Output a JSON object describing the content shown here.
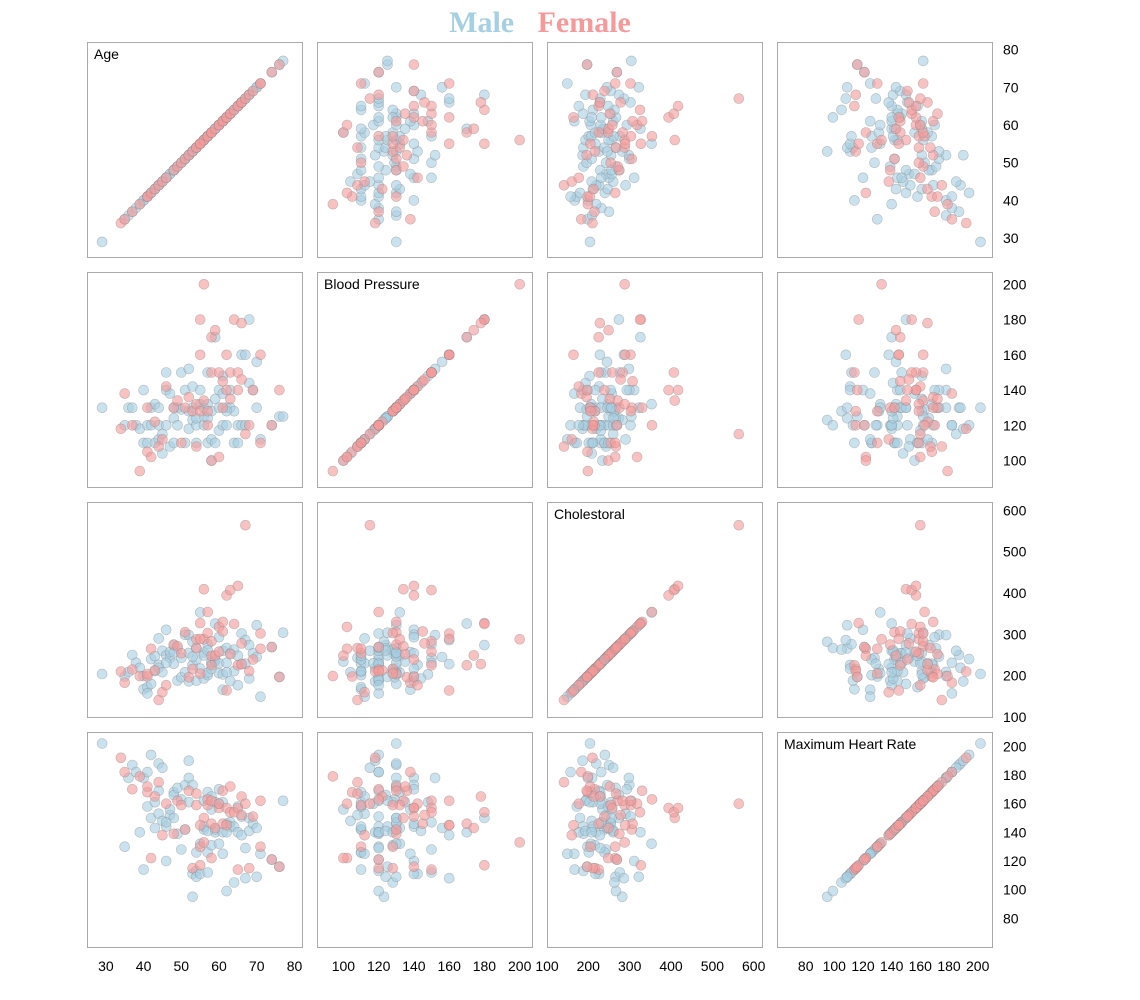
{
  "legend": {
    "male_label": "Male",
    "female_label": "Female"
  },
  "colors": {
    "male": "#a6cfe2",
    "female": "#f59a9a",
    "point_stroke": "#888888",
    "frame": "#aaaaaa"
  },
  "chart_data": {
    "type": "scatter",
    "subtype": "scatterplot-matrix",
    "grid": false,
    "legend_position": "top-center",
    "variables": [
      {
        "key": "age",
        "label": "Age",
        "domain": [
          25,
          82
        ],
        "ticks": [
          30,
          40,
          50,
          60,
          70,
          80
        ]
      },
      {
        "key": "bp",
        "label": "Blood Pressure",
        "domain": [
          85,
          207
        ],
        "ticks": [
          100,
          120,
          140,
          160,
          180,
          200
        ]
      },
      {
        "key": "chol",
        "label": "Cholestoral",
        "domain": [
          100,
          620
        ],
        "ticks": [
          100,
          200,
          300,
          400,
          500,
          600
        ]
      },
      {
        "key": "mhr",
        "label": "Maximum Heart Rate",
        "domain": [
          60,
          210
        ],
        "ticks": [
          80,
          100,
          120,
          140,
          160,
          180,
          200
        ]
      }
    ],
    "series": [
      {
        "name": "Male",
        "records": [
          [
            29,
            130,
            204,
            202
          ],
          [
            35,
            120,
            198,
            130
          ],
          [
            36,
            130,
            209,
            178
          ],
          [
            37,
            130,
            250,
            187
          ],
          [
            38,
            120,
            231,
            182
          ],
          [
            39,
            118,
            219,
            140
          ],
          [
            40,
            110,
            167,
            114
          ],
          [
            40,
            140,
            199,
            178
          ],
          [
            41,
            110,
            172,
            158
          ],
          [
            41,
            120,
            157,
            182
          ],
          [
            42,
            120,
            240,
            194
          ],
          [
            42,
            130,
            180,
            150
          ],
          [
            43,
            110,
            211,
            161
          ],
          [
            43,
            132,
            247,
            143
          ],
          [
            44,
            112,
            290,
            153
          ],
          [
            44,
            120,
            226,
            169
          ],
          [
            44,
            130,
            219,
            188
          ],
          [
            45,
            104,
            208,
            148
          ],
          [
            45,
            115,
            260,
            185
          ],
          [
            46,
            120,
            249,
            144
          ],
          [
            46,
            140,
            311,
            120
          ],
          [
            47,
            108,
            243,
            152
          ],
          [
            47,
            138,
            257,
            156
          ],
          [
            48,
            110,
            229,
            168
          ],
          [
            48,
            124,
            274,
            166
          ],
          [
            49,
            120,
            188,
            139
          ],
          [
            49,
            130,
            266,
            171
          ],
          [
            50,
            129,
            196,
            163
          ],
          [
            50,
            150,
            243,
            128
          ],
          [
            51,
            110,
            208,
            142
          ],
          [
            51,
            140,
            299,
            173
          ],
          [
            52,
            118,
            186,
            190
          ],
          [
            52,
            128,
            255,
            161
          ],
          [
            52,
            152,
            298,
            178
          ],
          [
            53,
            142,
            226,
            111
          ],
          [
            53,
            123,
            282,
            95
          ],
          [
            54,
            120,
            188,
            113
          ],
          [
            54,
            110,
            239,
            126
          ],
          [
            54,
            124,
            266,
            109
          ],
          [
            55,
            132,
            353,
            132
          ],
          [
            55,
            140,
            217,
            111
          ],
          [
            56,
            130,
            256,
            142
          ],
          [
            56,
            120,
            193,
            162
          ],
          [
            56,
            125,
            249,
            144
          ],
          [
            57,
            110,
            201,
            126
          ],
          [
            57,
            150,
            276,
            112
          ],
          [
            57,
            132,
            207,
            168
          ],
          [
            58,
            128,
            216,
            131
          ],
          [
            58,
            112,
            230,
            165
          ],
          [
            58,
            100,
            234,
            156
          ],
          [
            59,
            170,
            326,
            140
          ],
          [
            59,
            135,
            234,
            161
          ],
          [
            59,
            110,
            239,
            142
          ],
          [
            60,
            130,
            206,
            132
          ],
          [
            60,
            117,
            230,
            160
          ],
          [
            60,
            140,
            293,
            170
          ],
          [
            61,
            120,
            260,
            140
          ],
          [
            61,
            138,
            166,
            125
          ],
          [
            61,
            148,
            203,
            161
          ],
          [
            62,
            120,
            267,
            99
          ],
          [
            62,
            130,
            231,
            146
          ],
          [
            63,
            130,
            254,
            147
          ],
          [
            63,
            140,
            187,
            144
          ],
          [
            64,
            110,
            211,
            144
          ],
          [
            64,
            128,
            263,
            105
          ],
          [
            65,
            120,
            177,
            140
          ],
          [
            65,
            110,
            248,
            158
          ],
          [
            66,
            120,
            302,
            151
          ],
          [
            66,
            160,
            228,
            138
          ],
          [
            67,
            160,
            286,
            108
          ],
          [
            67,
            120,
            229,
            129
          ],
          [
            68,
            144,
            193,
            141
          ],
          [
            68,
            180,
            274,
            150
          ],
          [
            69,
            140,
            254,
            146
          ],
          [
            70,
            130,
            322,
            109
          ],
          [
            70,
            156,
            245,
            143
          ],
          [
            71,
            112,
            149,
            125
          ],
          [
            74,
            120,
            269,
            121
          ],
          [
            76,
            125,
            197,
            116
          ],
          [
            77,
            125,
            304,
            162
          ],
          [
            57,
            124,
            261,
            141
          ],
          [
            53,
            130,
            246,
            173
          ],
          [
            48,
            130,
            256,
            150
          ],
          [
            46,
            150,
            231,
            147
          ],
          [
            62,
            128,
            208,
            140
          ]
        ]
      },
      {
        "name": "Female",
        "records": [
          [
            34,
            118,
            210,
            192
          ],
          [
            35,
            138,
            183,
            182
          ],
          [
            37,
            120,
            215,
            170
          ],
          [
            39,
            94,
            199,
            179
          ],
          [
            41,
            105,
            198,
            168
          ],
          [
            41,
            130,
            204,
            172
          ],
          [
            42,
            102,
            265,
            122
          ],
          [
            43,
            122,
            213,
            165
          ],
          [
            44,
            108,
            141,
            175
          ],
          [
            45,
            112,
            160,
            138
          ],
          [
            46,
            142,
            177,
            160
          ],
          [
            48,
            130,
            275,
            139
          ],
          [
            49,
            134,
            271,
            162
          ],
          [
            50,
            110,
            254,
            159
          ],
          [
            51,
            130,
            305,
            142
          ],
          [
            52,
            136,
            196,
            169
          ],
          [
            53,
            128,
            216,
            115
          ],
          [
            54,
            108,
            267,
            167
          ],
          [
            54,
            132,
            288,
            159
          ],
          [
            55,
            128,
            205,
            130
          ],
          [
            55,
            180,
            327,
            117
          ],
          [
            56,
            200,
            288,
            133
          ],
          [
            56,
            134,
            409,
            150
          ],
          [
            57,
            128,
            303,
            159
          ],
          [
            57,
            120,
            354,
            163
          ],
          [
            58,
            100,
            248,
            122
          ],
          [
            58,
            150,
            283,
            162
          ],
          [
            58,
            170,
            225,
            146
          ],
          [
            59,
            174,
            249,
            143
          ],
          [
            60,
            150,
            258,
            157
          ],
          [
            60,
            102,
            318,
            160
          ],
          [
            61,
            145,
            307,
            146
          ],
          [
            61,
            130,
            330,
            169
          ],
          [
            62,
            140,
            394,
            157
          ],
          [
            62,
            160,
            164,
            145
          ],
          [
            63,
            150,
            407,
            154
          ],
          [
            63,
            135,
            252,
            172
          ],
          [
            64,
            180,
            325,
            154
          ],
          [
            65,
            140,
            417,
            157
          ],
          [
            65,
            150,
            225,
            114
          ],
          [
            66,
            178,
            228,
            165
          ],
          [
            66,
            146,
            278,
            152
          ],
          [
            67,
            115,
            564,
            160
          ],
          [
            68,
            120,
            211,
            115
          ],
          [
            69,
            140,
            239,
            151
          ],
          [
            71,
            110,
            265,
            130
          ],
          [
            71,
            160,
            302,
            162
          ],
          [
            74,
            120,
            269,
            121
          ],
          [
            76,
            140,
            197,
            116
          ],
          [
            55,
            160,
            289,
            145
          ]
        ]
      }
    ]
  }
}
